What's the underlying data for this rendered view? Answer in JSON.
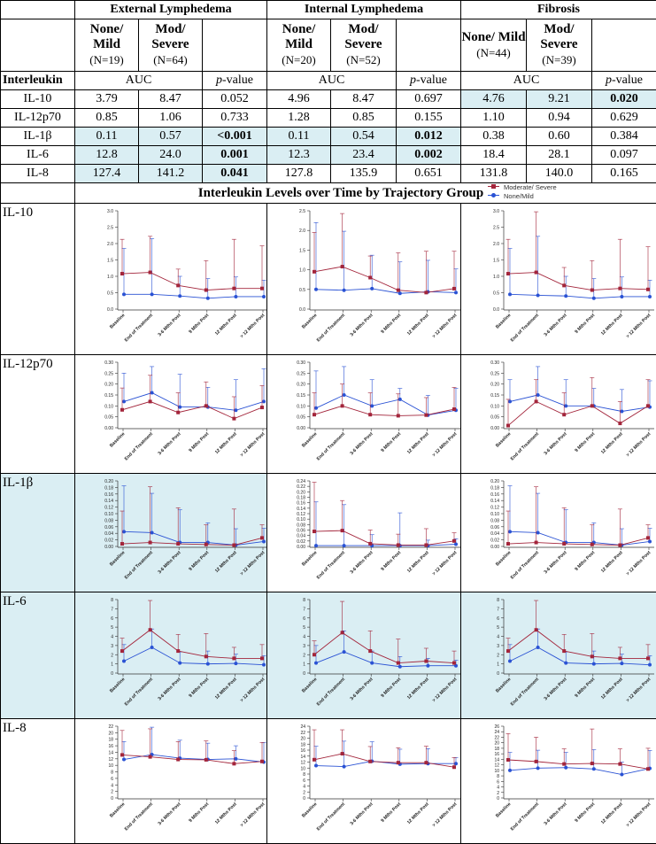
{
  "groups": [
    {
      "title": "External Lymphedema",
      "sub1": {
        "label": "None/ Mild",
        "n": "(N=19)"
      },
      "sub2": {
        "label": "Mod/ Severe",
        "n": "(N=64)"
      }
    },
    {
      "title": "Internal Lymphedema",
      "sub1": {
        "label": "None/ Mild",
        "n": "(N=20)"
      },
      "sub2": {
        "label": "Mod/ Severe",
        "n": "(N=52)"
      }
    },
    {
      "title": "Fibrosis",
      "sub1": {
        "label": "None/ Mild",
        "n": "(N=44)"
      },
      "sub2": {
        "label": "Mod/ Severe",
        "n": "(N=39)"
      }
    }
  ],
  "header": {
    "row_label": "Interleukin",
    "auc": "AUC",
    "pvalue_p": "p",
    "pvalue_rest": "-value"
  },
  "rows": [
    {
      "name": "IL-10",
      "cells": [
        "3.79",
        "8.47",
        "0.052",
        "4.96",
        "8.47",
        "0.697",
        "4.76",
        "9.21",
        "0.020"
      ]
    },
    {
      "name": "IL-12p70",
      "cells": [
        "0.85",
        "1.06",
        "0.733",
        "1.28",
        "0.85",
        "0.155",
        "1.10",
        "0.94",
        "0.629"
      ]
    },
    {
      "name": "IL-1β",
      "cells": [
        "0.11",
        "0.57",
        "<0.001",
        "0.11",
        "0.54",
        "0.012",
        "0.38",
        "0.60",
        "0.384"
      ]
    },
    {
      "name": "IL-6",
      "cells": [
        "12.8",
        "24.0",
        "0.001",
        "12.3",
        "23.4",
        "0.002",
        "18.4",
        "28.1",
        "0.097"
      ]
    },
    {
      "name": "IL-8",
      "cells": [
        "127.4",
        "141.2",
        "0.041",
        "127.8",
        "135.9",
        "0.651",
        "131.8",
        "140.0",
        "0.165"
      ]
    }
  ],
  "section_title": "Interleukin Levels over Time by Trajectory Group",
  "legend": {
    "series1": "Moderate/ Severe",
    "series2": "None/Mild",
    "color1": "#a3253b",
    "color2": "#2a52d4"
  },
  "highlight_color": "#daeef3",
  "chart_data": {
    "type": "line",
    "x": [
      "Baseline",
      "End of Treatment",
      "3-6 Mths Post",
      "9 Mths Post",
      "12 Mths Post",
      "> 12 Mths Post"
    ],
    "series_names": [
      "Moderate/ Severe",
      "None/Mild"
    ],
    "panels": [
      {
        "row": "IL-10",
        "col": "External Lymphedema",
        "ylim": [
          0,
          3.0
        ],
        "ticks": [
          "0.0",
          "0.5",
          "1.0",
          "1.5",
          "2.0",
          "2.5",
          "3.0"
        ],
        "mod": [
          1.08,
          1.12,
          0.72,
          0.58,
          0.63,
          0.63
        ],
        "mod_err": [
          1.05,
          1.1,
          0.5,
          0.9,
          1.5,
          1.3
        ],
        "none": [
          0.45,
          0.45,
          0.4,
          0.33,
          0.38,
          0.38
        ],
        "none_err": [
          1.4,
          1.7,
          0.6,
          0.6,
          0.6,
          0.5
        ]
      },
      {
        "row": "IL-10",
        "col": "Internal Lymphedema",
        "ylim": [
          0,
          2.5
        ],
        "ticks": [
          "0.0",
          "0.5",
          "1.0",
          "1.5",
          "2.0",
          "2.5"
        ],
        "mod": [
          0.95,
          1.08,
          0.8,
          0.48,
          0.42,
          0.52
        ],
        "mod_err": [
          1.0,
          1.35,
          0.55,
          0.95,
          1.05,
          0.95
        ],
        "none": [
          0.5,
          0.48,
          0.52,
          0.4,
          0.44,
          0.42
        ],
        "none_err": [
          1.7,
          1.5,
          0.85,
          0.8,
          0.8,
          0.6
        ]
      },
      {
        "row": "IL-10",
        "col": "Fibrosis",
        "ylim": [
          0,
          3.0
        ],
        "ticks": [
          "0.0",
          "0.5",
          "1.0",
          "1.5",
          "2.0",
          "2.5",
          "3.0"
        ],
        "mod": [
          1.08,
          1.12,
          0.72,
          0.58,
          0.63,
          0.6
        ],
        "mod_err": [
          1.05,
          1.85,
          0.55,
          0.9,
          1.5,
          1.3
        ],
        "none": [
          0.45,
          0.42,
          0.4,
          0.33,
          0.38,
          0.38
        ],
        "none_err": [
          1.4,
          1.8,
          0.6,
          0.6,
          0.6,
          0.5
        ]
      },
      {
        "row": "IL-12p70",
        "col": "External Lymphedema",
        "ylim": [
          0,
          0.3
        ],
        "ticks": [
          "0.00",
          "0.05",
          "0.10",
          "0.15",
          "0.20",
          "0.25",
          "0.30"
        ],
        "mod": [
          0.082,
          0.12,
          0.07,
          0.1,
          0.042,
          0.093
        ],
        "mod_err": [
          0.1,
          0.12,
          0.09,
          0.11,
          0.1,
          0.1
        ],
        "none": [
          0.12,
          0.16,
          0.095,
          0.095,
          0.08,
          0.12
        ],
        "none_err": [
          0.13,
          0.12,
          0.15,
          0.09,
          0.14,
          0.15
        ]
      },
      {
        "row": "IL-12p70",
        "col": "Internal Lymphedema",
        "ylim": [
          0,
          0.3
        ],
        "ticks": [
          "0.00",
          "0.05",
          "0.10",
          "0.15",
          "0.20",
          "0.25",
          "0.30"
        ],
        "mod": [
          0.06,
          0.1,
          0.06,
          0.055,
          0.058,
          0.085
        ],
        "mod_err": [
          0.1,
          0.1,
          0.1,
          0.1,
          0.08,
          0.1
        ],
        "none": [
          0.09,
          0.15,
          0.1,
          0.13,
          0.058,
          0.08
        ],
        "none_err": [
          0.17,
          0.13,
          0.12,
          0.05,
          0.09,
          0.1
        ]
      },
      {
        "row": "IL-12p70",
        "col": "Fibrosis",
        "ylim": [
          0,
          0.3
        ],
        "ticks": [
          "0.00",
          "0.05",
          "0.10",
          "0.15",
          "0.20",
          "0.25",
          "0.30"
        ],
        "mod": [
          0.01,
          0.12,
          0.06,
          0.1,
          0.02,
          0.1
        ],
        "mod_err": [
          0.12,
          0.1,
          0.1,
          0.13,
          0.1,
          0.12
        ],
        "none": [
          0.12,
          0.15,
          0.1,
          0.1,
          0.075,
          0.095
        ],
        "none_err": [
          0.1,
          0.13,
          0.12,
          0.08,
          0.1,
          0.12
        ]
      },
      {
        "row": "IL-1β",
        "col": "External Lymphedema",
        "ylim": [
          0,
          0.2
        ],
        "ticks": [
          "0.00",
          "0.02",
          "0.04",
          "0.06",
          "0.08",
          "0.10",
          "0.12",
          "0.14",
          "0.16",
          "0.18",
          "0.20"
        ],
        "mod": [
          0.008,
          0.012,
          0.008,
          0.006,
          0.004,
          0.026
        ],
        "mod_err": [
          0.1,
          0.17,
          0.11,
          0.06,
          0.11,
          0.04
        ],
        "none": [
          0.045,
          0.042,
          0.012,
          0.012,
          0.004,
          0.015
        ],
        "none_err": [
          0.14,
          0.12,
          0.1,
          0.06,
          0.05,
          0.04
        ]
      },
      {
        "row": "IL-1β",
        "col": "Internal Lymphedema",
        "ylim": [
          0,
          0.24
        ],
        "ticks": [
          "0.00",
          "0.02",
          "0.04",
          "0.06",
          "0.08",
          "0.10",
          "0.12",
          "0.14",
          "0.16",
          "0.18",
          "0.20",
          "0.22",
          "0.24"
        ],
        "mod": [
          0.055,
          0.058,
          0.01,
          0.005,
          0.005,
          0.02
        ],
        "mod_err": [
          0.18,
          0.11,
          0.05,
          0.04,
          0.06,
          0.03
        ],
        "none": [
          0.003,
          0.003,
          0.003,
          0.003,
          0.003,
          0.008
        ],
        "none_err": [
          0.16,
          0.15,
          0.04,
          0.12,
          0.02,
          0.02
        ]
      },
      {
        "row": "IL-1β",
        "col": "Fibrosis",
        "ylim": [
          0,
          0.2
        ],
        "ticks": [
          "0.00",
          "0.02",
          "0.04",
          "0.06",
          "0.08",
          "0.10",
          "0.12",
          "0.14",
          "0.16",
          "0.18",
          "0.20"
        ],
        "mod": [
          0.008,
          0.012,
          0.008,
          0.006,
          0.004,
          0.026
        ],
        "mod_err": [
          0.1,
          0.17,
          0.11,
          0.06,
          0.11,
          0.04
        ],
        "none": [
          0.045,
          0.042,
          0.012,
          0.012,
          0.004,
          0.015
        ],
        "none_err": [
          0.14,
          0.12,
          0.1,
          0.06,
          0.05,
          0.04
        ]
      },
      {
        "row": "IL-6",
        "col": "External Lymphedema",
        "ylim": [
          0,
          8
        ],
        "ticks": [
          "0",
          "1",
          "2",
          "3",
          "4",
          "5",
          "6",
          "7",
          "8"
        ],
        "mod": [
          2.4,
          4.7,
          2.4,
          1.8,
          1.6,
          1.6
        ],
        "mod_err": [
          1.4,
          3.2,
          1.8,
          2.5,
          1.2,
          1.5
        ],
        "none": [
          1.3,
          2.8,
          1.1,
          1.0,
          1.05,
          0.9
        ],
        "none_err": [
          1.8,
          2.0,
          1.2,
          1.4,
          1.0,
          1.0
        ]
      },
      {
        "row": "IL-6",
        "col": "Internal Lymphedema",
        "ylim": [
          0,
          8
        ],
        "ticks": [
          "0",
          "1",
          "2",
          "3",
          "4",
          "5",
          "6",
          "7",
          "8"
        ],
        "mod": [
          2.0,
          4.4,
          2.4,
          1.1,
          1.3,
          1.1
        ],
        "mod_err": [
          1.5,
          3.4,
          2.2,
          2.6,
          1.4,
          1.3
        ],
        "none": [
          1.1,
          2.3,
          1.1,
          0.7,
          0.8,
          0.8
        ],
        "none_err": [
          1.9,
          2.3,
          1.3,
          1.1,
          0.8,
          0.6
        ]
      },
      {
        "row": "IL-6",
        "col": "Fibrosis",
        "ylim": [
          0,
          8
        ],
        "ticks": [
          "0",
          "1",
          "2",
          "3",
          "4",
          "5",
          "6",
          "7",
          "8"
        ],
        "mod": [
          2.4,
          4.7,
          2.4,
          1.8,
          1.6,
          1.6
        ],
        "mod_err": [
          1.4,
          3.2,
          1.8,
          2.5,
          1.2,
          1.5
        ],
        "none": [
          1.3,
          2.8,
          1.1,
          1.0,
          1.05,
          0.9
        ],
        "none_err": [
          1.8,
          2.0,
          1.2,
          1.4,
          1.0,
          1.0
        ]
      },
      {
        "row": "IL-8",
        "col": "External Lymphedema",
        "ylim": [
          0,
          22
        ],
        "ticks": [
          "0",
          "2",
          "4",
          "6",
          "8",
          "10",
          "12",
          "14",
          "16",
          "18",
          "20",
          "22"
        ],
        "mod": [
          13.2,
          12.6,
          11.8,
          11.7,
          10.5,
          11.2
        ],
        "mod_err": [
          7.5,
          8.6,
          5.5,
          5.8,
          4.0,
          5.8
        ],
        "none": [
          11.8,
          13.3,
          12.2,
          11.8,
          12.0,
          11.0
        ],
        "none_err": [
          5.5,
          8.4,
          5.5,
          5.0,
          4.0,
          6.0
        ]
      },
      {
        "row": "IL-8",
        "col": "Internal Lymphedema",
        "ylim": [
          0,
          24
        ],
        "ticks": [
          "0",
          "2",
          "4",
          "6",
          "8",
          "10",
          "12",
          "14",
          "16",
          "18",
          "20",
          "22",
          "24"
        ],
        "mod": [
          12.8,
          14.8,
          12.2,
          11.8,
          11.8,
          10.3
        ],
        "mod_err": [
          10.0,
          8.0,
          5.0,
          5.0,
          5.5,
          3.2
        ],
        "none": [
          10.8,
          10.5,
          12.3,
          11.3,
          11.5,
          11.5
        ],
        "none_err": [
          6.5,
          8.5,
          6.5,
          5.0,
          5.0,
          2.0
        ]
      },
      {
        "row": "IL-8",
        "col": "Fibrosis",
        "ylim": [
          0,
          26
        ],
        "ticks": [
          "0",
          "2",
          "4",
          "6",
          "8",
          "10",
          "12",
          "14",
          "16",
          "18",
          "20",
          "22",
          "24",
          "26"
        ],
        "mod": [
          13.8,
          13.2,
          12.3,
          12.5,
          12.3,
          10.5
        ],
        "mod_err": [
          9.5,
          8.8,
          5.5,
          12.5,
          5.5,
          7.5
        ],
        "none": [
          10.0,
          10.8,
          11.0,
          10.5,
          8.5,
          10.7
        ],
        "none_err": [
          6.5,
          6.5,
          5.5,
          7.0,
          4.5,
          6.5
        ]
      }
    ]
  }
}
